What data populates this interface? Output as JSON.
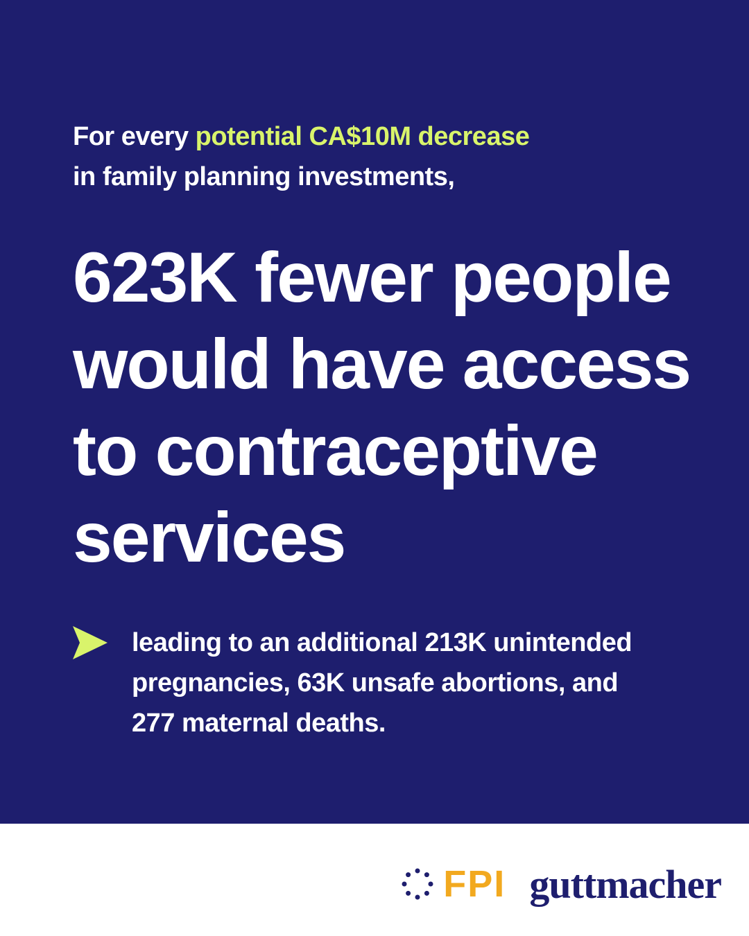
{
  "intro": {
    "line1_prefix": "For every ",
    "line1_highlight": "potential CA$10M decrease",
    "line2": "in family planning investments,"
  },
  "headline": {
    "line1": "623K fewer people",
    "line2": "would have access",
    "line3": "to contraceptive",
    "line4": "services"
  },
  "detail": {
    "line1": "leading to an additional 213K unintended",
    "line2": "pregnancies, 63K unsafe abortions, and",
    "line3": "277 maternal deaths."
  },
  "logos": {
    "fpi": "FPI",
    "guttmacher": "guttmacher"
  },
  "icons": {
    "bullet": "arrow-right-icon",
    "fpi_mark": "dots-circle-icon"
  },
  "colors": {
    "background": "#1e1e6e",
    "highlight": "#d9f46b",
    "text": "#ffffff",
    "fpi": "#f2a91f",
    "footer": "#ffffff"
  }
}
